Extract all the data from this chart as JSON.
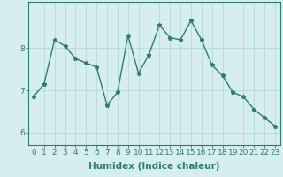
{
  "x": [
    0,
    1,
    2,
    3,
    4,
    5,
    6,
    7,
    8,
    9,
    10,
    11,
    12,
    13,
    14,
    15,
    16,
    17,
    18,
    19,
    20,
    21,
    22,
    23
  ],
  "y": [
    6.85,
    7.15,
    8.2,
    8.05,
    7.75,
    7.65,
    7.55,
    6.65,
    6.95,
    8.3,
    7.4,
    7.85,
    8.55,
    8.25,
    8.2,
    8.65,
    8.2,
    7.6,
    7.35,
    6.95,
    6.85,
    6.55,
    6.35,
    6.15
  ],
  "line_color": "#2d7d6e",
  "marker": "*",
  "bg_color": "#d6eeee",
  "grid_color": "#b8d8d8",
  "axis_color": "#2d7d6e",
  "xlabel": "Humidex (Indice chaleur)",
  "yticks": [
    6,
    7,
    8
  ],
  "ylim": [
    5.7,
    9.1
  ],
  "xlim": [
    -0.5,
    23.5
  ],
  "xlabel_fontsize": 7.5,
  "tick_fontsize": 6.5,
  "line_width": 1.0,
  "marker_size": 3.5
}
